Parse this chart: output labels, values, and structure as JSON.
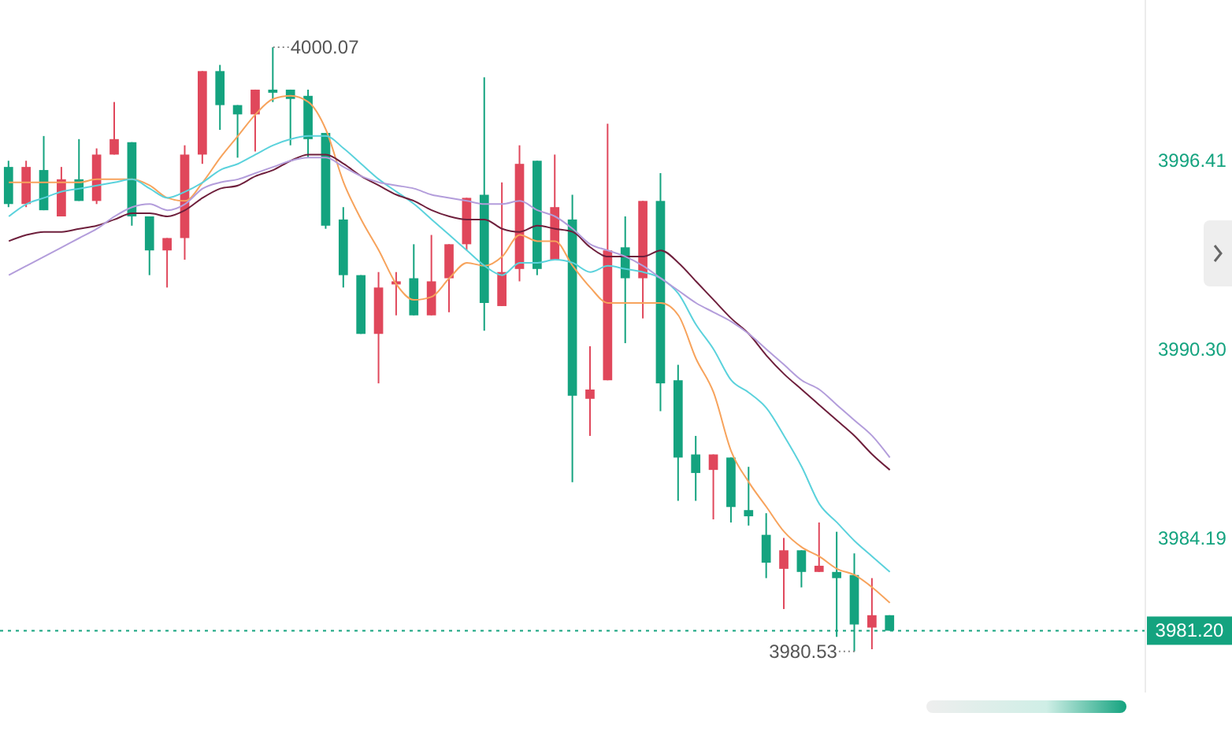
{
  "chart_data": {
    "type": "candlestick",
    "categories": [
      null,
      null,
      null,
      null,
      null,
      null,
      null,
      null,
      null,
      null,
      null,
      null,
      null,
      null,
      null,
      null,
      null,
      null,
      null,
      null,
      null,
      null,
      null,
      null,
      null,
      null,
      null,
      null,
      null,
      null,
      null,
      null,
      null,
      null,
      null,
      null,
      null,
      null,
      null,
      null,
      null,
      null,
      null,
      null,
      null,
      null,
      null,
      null,
      null,
      null,
      null,
      null,
      null,
      null,
      null,
      null,
      null,
      null,
      null,
      null,
      null,
      null,
      null,
      null,
      null
    ],
    "ohlc": [
      [
        3996.2,
        3996.4,
        3994.9,
        3995.0
      ],
      [
        3995.0,
        3996.4,
        3994.9,
        3996.2
      ],
      [
        3996.1,
        3997.2,
        3994.8,
        3994.8
      ],
      [
        3994.6,
        3996.2,
        3994.6,
        3995.8
      ],
      [
        3995.8,
        3997.1,
        3995.1,
        3995.1
      ],
      [
        3995.1,
        3996.8,
        3995.0,
        3996.6
      ],
      [
        3996.6,
        3998.3,
        3996.6,
        3997.1
      ],
      [
        3997.0,
        3997.0,
        3994.3,
        3994.6
      ],
      [
        3994.6,
        3994.6,
        3992.7,
        3993.5
      ],
      [
        3993.5,
        3993.9,
        3992.3,
        3993.9
      ],
      [
        3993.9,
        3996.9,
        3993.2,
        3996.6
      ],
      [
        3996.6,
        3999.3,
        3996.3,
        3999.3
      ],
      [
        3999.3,
        3999.5,
        3997.4,
        3998.2
      ],
      [
        3998.2,
        3998.2,
        3996.5,
        3997.9
      ],
      [
        3997.9,
        3998.7,
        3996.7,
        3998.7
      ],
      [
        3998.7,
        4000.07,
        3998.3,
        3998.6
      ],
      [
        3998.7,
        3998.7,
        3996.9,
        3998.4
      ],
      [
        3998.5,
        3998.7,
        3996.5,
        3997.1
      ],
      [
        3997.3,
        3997.3,
        3994.2,
        3994.3
      ],
      [
        3994.5,
        3994.9,
        3992.3,
        3992.7
      ],
      [
        3992.7,
        3992.7,
        3990.8,
        3990.8
      ],
      [
        3990.8,
        3992.8,
        3989.2,
        3992.3
      ],
      [
        3992.4,
        3992.8,
        3991.4,
        3992.5
      ],
      [
        3992.6,
        3993.7,
        3991.4,
        3991.4
      ],
      [
        3991.4,
        3994.0,
        3991.4,
        3992.5
      ],
      [
        3992.6,
        3993.7,
        3991.5,
        3993.7
      ],
      [
        3993.7,
        3995.2,
        3993.5,
        3995.2
      ],
      [
        3995.3,
        3999.1,
        3990.9,
        3991.8
      ],
      [
        3991.7,
        3995.7,
        3991.7,
        3992.8
      ],
      [
        3992.9,
        3996.9,
        3992.5,
        3996.3
      ],
      [
        3996.4,
        3996.4,
        3992.7,
        3992.9
      ],
      [
        3993.2,
        3996.6,
        3993.2,
        3994.9
      ],
      [
        3994.5,
        3995.3,
        3986.0,
        3988.8
      ],
      [
        3988.7,
        3990.4,
        3987.5,
        3989.0
      ],
      [
        3989.3,
        3997.6,
        3989.3,
        3993.5
      ],
      [
        3993.6,
        3994.6,
        3990.5,
        3992.6
      ],
      [
        3992.6,
        3995.1,
        3991.3,
        3995.1
      ],
      [
        3995.1,
        3996.0,
        3988.3,
        3989.2
      ],
      [
        3989.3,
        3989.8,
        3985.4,
        3986.8
      ],
      [
        3986.9,
        3987.5,
        3985.4,
        3986.3
      ],
      [
        3986.4,
        3986.9,
        3984.8,
        3986.9
      ],
      [
        3986.8,
        3986.8,
        3984.7,
        3985.2
      ],
      [
        3985.1,
        3986.5,
        3984.6,
        3984.9
      ],
      [
        3984.3,
        3985.0,
        3982.9,
        3983.4
      ],
      [
        3983.2,
        3984.2,
        3981.9,
        3983.8
      ],
      [
        3983.8,
        3983.8,
        3982.6,
        3983.1
      ],
      [
        3983.1,
        3984.7,
        3983.1,
        3983.3
      ],
      [
        3983.1,
        3984.4,
        3981.0,
        3982.9
      ],
      [
        3983.0,
        3983.7,
        3980.53,
        3981.4
      ],
      [
        3981.3,
        3982.9,
        3980.6,
        3981.7
      ],
      [
        3981.7,
        3981.7,
        3981.2,
        3981.2
      ],
      null,
      null,
      null,
      null,
      null,
      null,
      null,
      null,
      null,
      null,
      null,
      null,
      null,
      null
    ],
    "colors": [
      "#14a37f",
      "#e0475b",
      "#14a37f",
      "#e0475b",
      "#14a37f",
      "#e0475b",
      "#e0475b",
      "#14a37f",
      "#14a37f",
      "#e0475b",
      "#e0475b",
      "#e0475b",
      "#14a37f",
      "#14a37f",
      "#e0475b",
      "#14a37f",
      "#14a37f",
      "#14a37f",
      "#14a37f",
      "#14a37f",
      "#14a37f",
      "#e0475b",
      "#e0475b",
      "#14a37f",
      "#e0475b",
      "#e0475b",
      "#e0475b",
      "#14a37f",
      "#e0475b",
      "#e0475b",
      "#14a37f",
      "#e0475b",
      "#14a37f",
      "#e0475b",
      "#e0475b",
      "#14a37f",
      "#e0475b",
      "#14a37f",
      "#14a37f",
      "#14a37f",
      "#e0475b",
      "#14a37f",
      "#14a37f",
      "#14a37f",
      "#e0475b",
      "#14a37f",
      "#e0475b",
      "#14a37f",
      "#14a37f",
      "#e0475b",
      "#14a37f",
      null,
      null,
      null,
      null,
      null,
      null,
      null,
      null,
      null,
      null,
      null,
      null,
      null,
      null
    ],
    "series": [
      {
        "type": "line",
        "color": "#f7a35c",
        "values": [
          3995.7,
          3995.7,
          3995.7,
          3995.7,
          3995.7,
          3995.8,
          3995.8,
          3995.8,
          3995.6,
          3995.2,
          3995.1,
          3995.7,
          3996.5,
          3997.2,
          3997.9,
          3998.4,
          3998.5,
          3998.3,
          3997.4,
          3995.7,
          3994.5,
          3993.5,
          3992.4,
          3991.9,
          3992.0,
          3992.6,
          3993.1,
          3993.0,
          3993.3,
          3994.0,
          3993.8,
          3993.8,
          3993.0,
          3992.3,
          3991.8,
          3991.8,
          3991.8,
          3991.8,
          3991.4,
          3990.0,
          3988.9,
          3987.0,
          3986.0,
          3985.2,
          3984.4,
          3983.9,
          3983.6,
          3983.2,
          3983.0,
          3982.6,
          3982.1,
          null,
          null,
          null,
          null,
          null,
          null,
          null,
          null,
          null,
          null,
          null,
          null,
          null,
          null
        ]
      },
      {
        "type": "line",
        "color": "#5bd2dc",
        "values": [
          3994.6,
          3995.0,
          3995.2,
          3995.4,
          3995.5,
          3995.6,
          3995.7,
          3995.8,
          3995.5,
          3995.2,
          3995.4,
          3995.7,
          3996.1,
          3996.3,
          3996.6,
          3996.9,
          3997.1,
          3997.2,
          3997.2,
          3996.8,
          3996.3,
          3995.8,
          3995.4,
          3995.0,
          3994.5,
          3994.0,
          3993.5,
          3993.0,
          3992.7,
          3993.1,
          3993.1,
          3993.2,
          3993.1,
          3992.8,
          3993.0,
          3992.9,
          3992.8,
          3992.6,
          3992.1,
          3991.1,
          3990.3,
          3989.3,
          3988.9,
          3988.4,
          3987.5,
          3986.5,
          3985.3,
          3984.7,
          3984.1,
          3983.6,
          3983.1,
          null,
          null,
          null,
          null,
          null,
          null,
          null,
          null,
          null,
          null,
          null,
          null,
          null,
          null
        ]
      },
      {
        "type": "line",
        "color": "#6e1f3c",
        "values": [
          3993.8,
          3994.0,
          3994.1,
          3994.1,
          3994.2,
          3994.3,
          3994.5,
          3994.7,
          3994.7,
          3994.6,
          3994.8,
          3995.2,
          3995.5,
          3995.6,
          3995.9,
          3996.1,
          3996.4,
          3996.6,
          3996.6,
          3996.3,
          3995.9,
          3995.6,
          3995.3,
          3995.1,
          3994.8,
          3994.6,
          3994.5,
          3994.5,
          3994.2,
          3994.1,
          3994.3,
          3994.2,
          3994.1,
          3993.6,
          3993.3,
          3993.3,
          3993.3,
          3993.5,
          3993.1,
          3992.5,
          3991.9,
          3991.3,
          3990.8,
          3990.1,
          3989.5,
          3989.0,
          3988.5,
          3988.0,
          3987.5,
          3986.9,
          3986.4,
          null,
          null,
          null,
          null,
          null,
          null,
          null,
          null,
          null,
          null,
          null,
          null,
          null,
          null
        ]
      },
      {
        "type": "line",
        "color": "#b39ddb",
        "values": [
          3992.7,
          3993.0,
          3993.3,
          3993.6,
          3993.9,
          3994.2,
          3994.6,
          3994.9,
          3995.0,
          3994.8,
          3995.0,
          3995.5,
          3995.7,
          3995.8,
          3996.0,
          3996.2,
          3996.4,
          3996.5,
          3996.5,
          3996.2,
          3995.9,
          3995.7,
          3995.6,
          3995.5,
          3995.3,
          3995.2,
          3995.1,
          3995.0,
          3995.0,
          3995.1,
          3994.8,
          3994.6,
          3994.2,
          3993.7,
          3993.5,
          3993.3,
          3993.0,
          3992.6,
          3992.2,
          3991.8,
          3991.5,
          3991.2,
          3990.8,
          3990.3,
          3989.8,
          3989.3,
          3989.0,
          3988.5,
          3988.0,
          3987.5,
          3986.8,
          null,
          null,
          null,
          null,
          null,
          null,
          null,
          null,
          null,
          null,
          null,
          null,
          null,
          null
        ]
      }
    ],
    "marker": "none",
    "ylim": [
      3979.2,
      4001.6
    ],
    "yticks": [
      3996.41,
      {
        "value": 3990.3,
        "label": "3990.30"
      },
      3984.19
    ],
    "tick_labels": "y",
    "ref_lines": [
      {
        "axis": "y",
        "value": 3981.2,
        "label": "3981.20",
        "color": "#14a37f",
        "line_style": "dotted"
      }
    ],
    "annotations": [
      "4000.07",
      "3980.53"
    ]
  }
}
